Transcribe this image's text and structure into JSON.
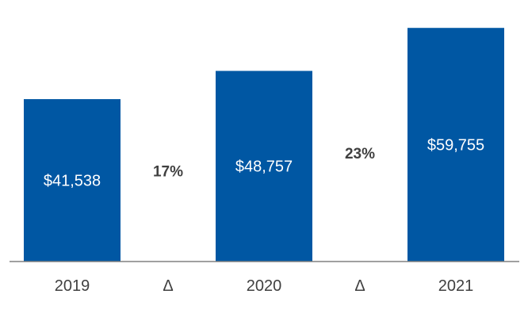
{
  "chart_data": {
    "type": "bar",
    "categories": [
      "2019",
      "Δ",
      "2020",
      "Δ",
      "2021"
    ],
    "values": [
      41538,
      null,
      48757,
      null,
      59755
    ],
    "value_labels": [
      "$41,538",
      "",
      "$48,757",
      "",
      "$59,755"
    ],
    "delta_labels": [
      "",
      "17%",
      "",
      "23%",
      ""
    ],
    "bar_color": "#0057A3",
    "axis_color": "#808080",
    "ylim": [
      0,
      60000
    ],
    "grid": false,
    "title": "",
    "xlabel": "",
    "ylabel": ""
  }
}
